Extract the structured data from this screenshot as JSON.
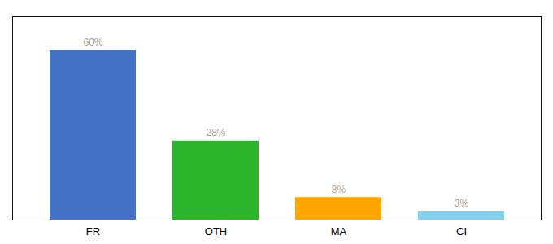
{
  "chart_data": {
    "type": "bar",
    "categories": [
      "FR",
      "OTH",
      "MA",
      "CI"
    ],
    "values": [
      60,
      28,
      8,
      3
    ],
    "value_labels": [
      "60%",
      "28%",
      "8%",
      "3%"
    ],
    "colors": [
      "#4472c4",
      "#2db52d",
      "#ffa500",
      "#87ceeb"
    ],
    "ylim": [
      0,
      72
    ],
    "data_labels": true,
    "tick_labels": "x"
  }
}
